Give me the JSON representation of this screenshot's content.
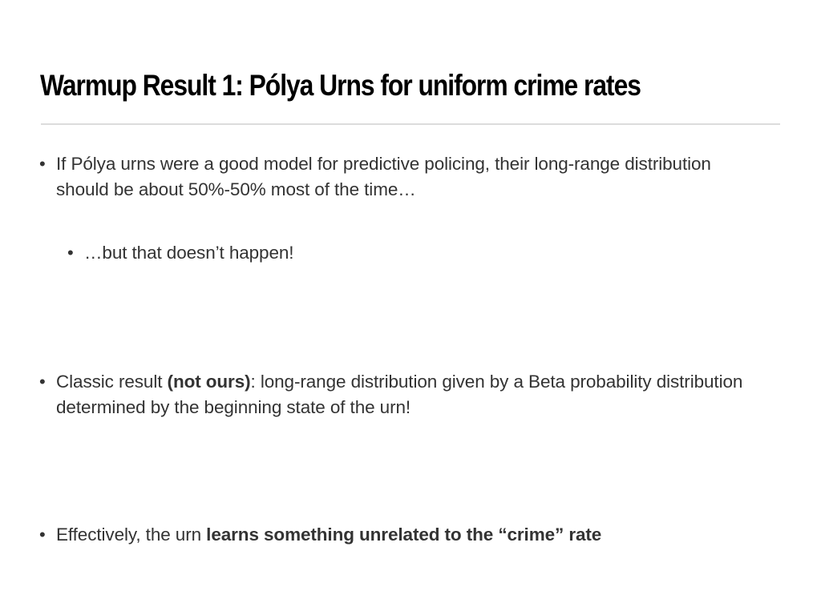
{
  "slide": {
    "title": "Warmup Result 1: Pólya Urns for uniform crime rates",
    "bullets": [
      {
        "text": "If Pólya urns were a good model for predictive policing, their long-range distribution should be about 50%-50% most of the time…",
        "sub_bullets": [
          {
            "text": "…but that doesn’t happen!"
          }
        ]
      },
      {
        "text_before": "Classic result ",
        "text_bold": "(not ours)",
        "text_after": ": long-range distribution given by a Beta probability distribution determined by the beginning state of the urn!"
      },
      {
        "text_before": "Effectively, the urn ",
        "text_bold": "learns something unrelated to the “crime” rate"
      }
    ],
    "bullet_symbol": "•"
  }
}
